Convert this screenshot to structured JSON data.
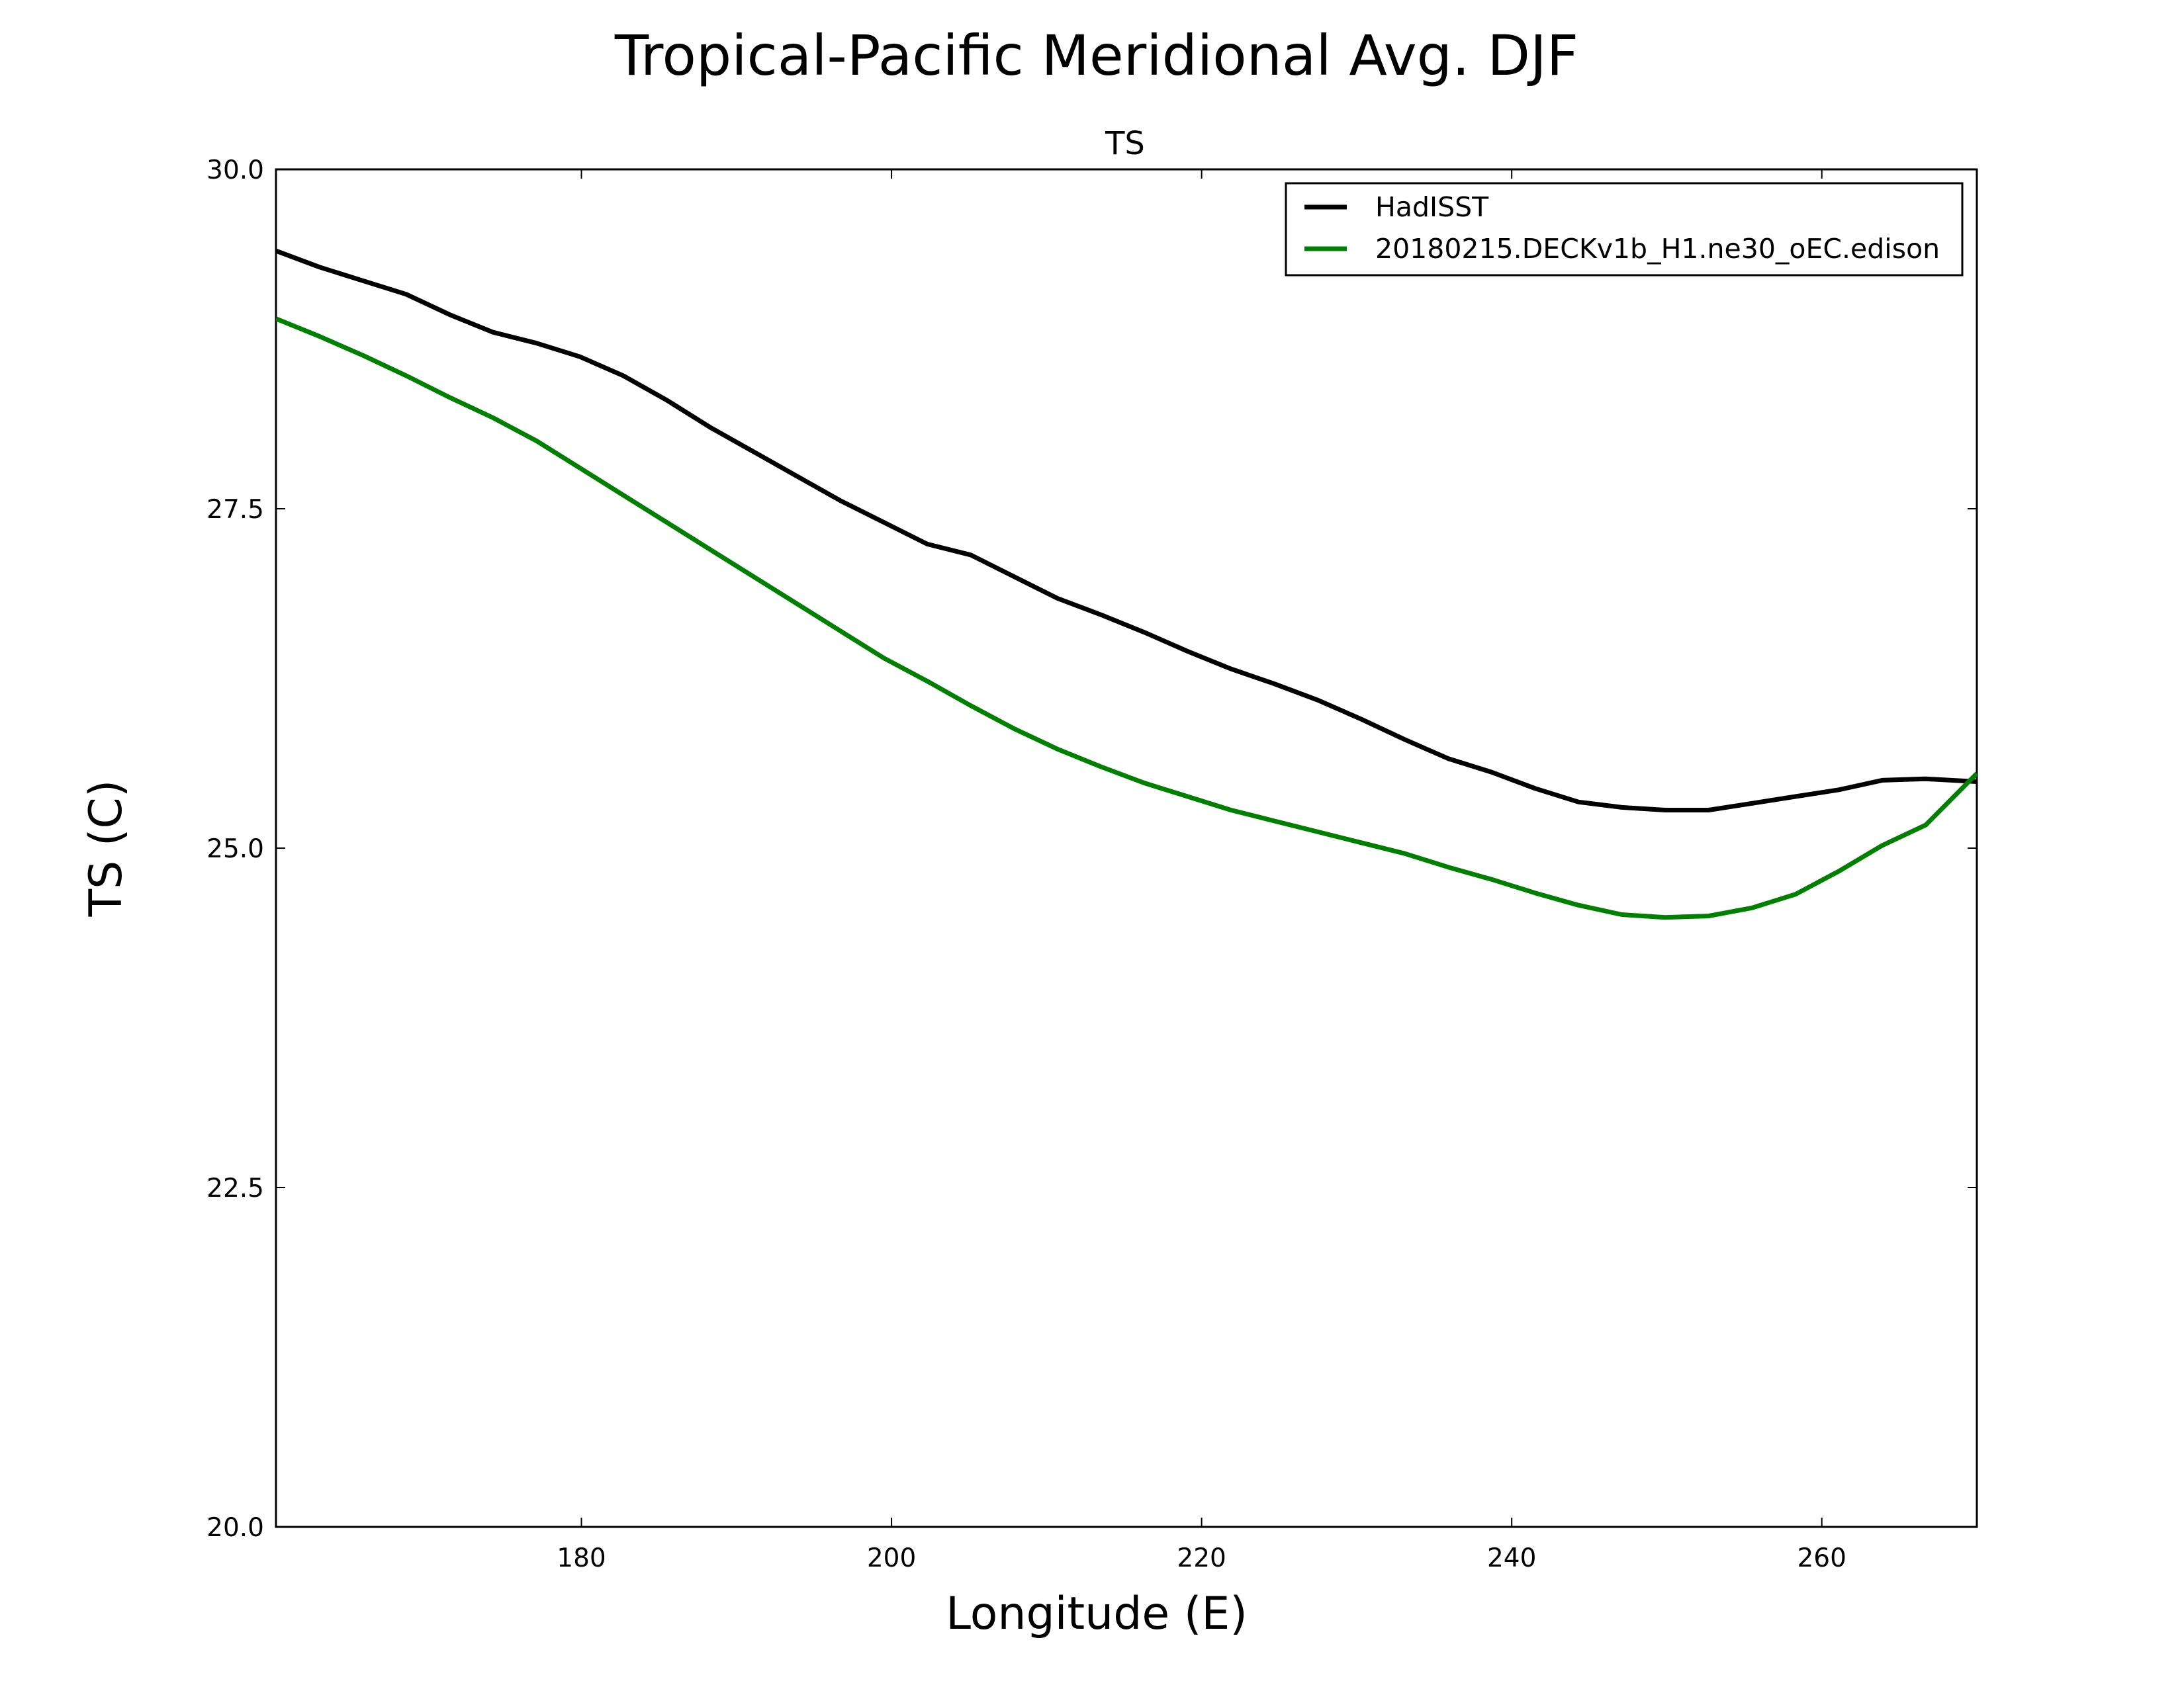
{
  "chart_data": {
    "type": "line",
    "suptitle": "Tropical-Pacific Meridional Avg. DJF",
    "title": "TS",
    "xlabel": "Longitude (E)",
    "ylabel": "TS (C)",
    "xlim": [
      160.3,
      270
    ],
    "ylim": [
      20.0,
      30.0
    ],
    "xticks": [
      180,
      200,
      220,
      240,
      260
    ],
    "xtick_labels": [
      "180",
      "200",
      "220",
      "240",
      "260"
    ],
    "yticks": [
      20.0,
      22.5,
      25.0,
      27.5,
      30.0
    ],
    "ytick_labels": [
      "20.0",
      "22.5",
      "25.0",
      "27.5",
      "30.0"
    ],
    "legend_position": "top-right",
    "series": [
      {
        "name": "HadISST",
        "color": "#000000",
        "x": [
          160.3,
          163.1,
          165.9,
          168.7,
          171.5,
          174.3,
          177.1,
          179.9,
          182.7,
          185.5,
          188.3,
          191.1,
          193.9,
          196.7,
          199.5,
          202.3,
          205.1,
          207.9,
          210.7,
          213.5,
          216.3,
          219.1,
          221.9,
          224.7,
          227.5,
          230.3,
          233.1,
          235.9,
          238.7,
          241.5,
          244.3,
          247.1,
          249.9,
          252.7,
          255.5,
          258.3,
          261.1,
          263.9,
          266.7,
          270.0
        ],
        "y": [
          29.4,
          29.28,
          29.18,
          29.08,
          28.93,
          28.8,
          28.72,
          28.62,
          28.48,
          28.3,
          28.1,
          27.92,
          27.74,
          27.56,
          27.4,
          27.24,
          27.16,
          27.0,
          26.84,
          26.72,
          26.59,
          26.45,
          26.32,
          26.21,
          26.09,
          25.95,
          25.8,
          25.66,
          25.56,
          25.44,
          25.34,
          25.3,
          25.28,
          25.28,
          25.33,
          25.38,
          25.43,
          25.5,
          25.51,
          25.49
        ]
      },
      {
        "name": "20180215.DECKv1b_H1.ne30_oEC.edison",
        "color": "#008000",
        "x": [
          160.3,
          163.1,
          165.9,
          168.7,
          171.5,
          174.3,
          177.1,
          179.9,
          182.7,
          185.5,
          188.3,
          191.1,
          193.9,
          196.7,
          199.5,
          202.3,
          205.1,
          207.9,
          210.7,
          213.5,
          216.3,
          219.1,
          221.9,
          224.7,
          227.5,
          230.3,
          233.1,
          235.9,
          238.7,
          241.5,
          244.3,
          247.1,
          249.9,
          252.7,
          255.5,
          258.3,
          261.1,
          263.9,
          266.7,
          270.0
        ],
        "y": [
          28.9,
          28.77,
          28.63,
          28.48,
          28.32,
          28.17,
          28.0,
          27.8,
          27.6,
          27.4,
          27.2,
          27.0,
          26.8,
          26.6,
          26.4,
          26.23,
          26.05,
          25.88,
          25.73,
          25.6,
          25.48,
          25.38,
          25.28,
          25.2,
          25.12,
          25.04,
          24.96,
          24.86,
          24.77,
          24.67,
          24.58,
          24.51,
          24.49,
          24.5,
          24.56,
          24.66,
          24.83,
          25.02,
          25.17,
          25.55
        ]
      }
    ]
  }
}
